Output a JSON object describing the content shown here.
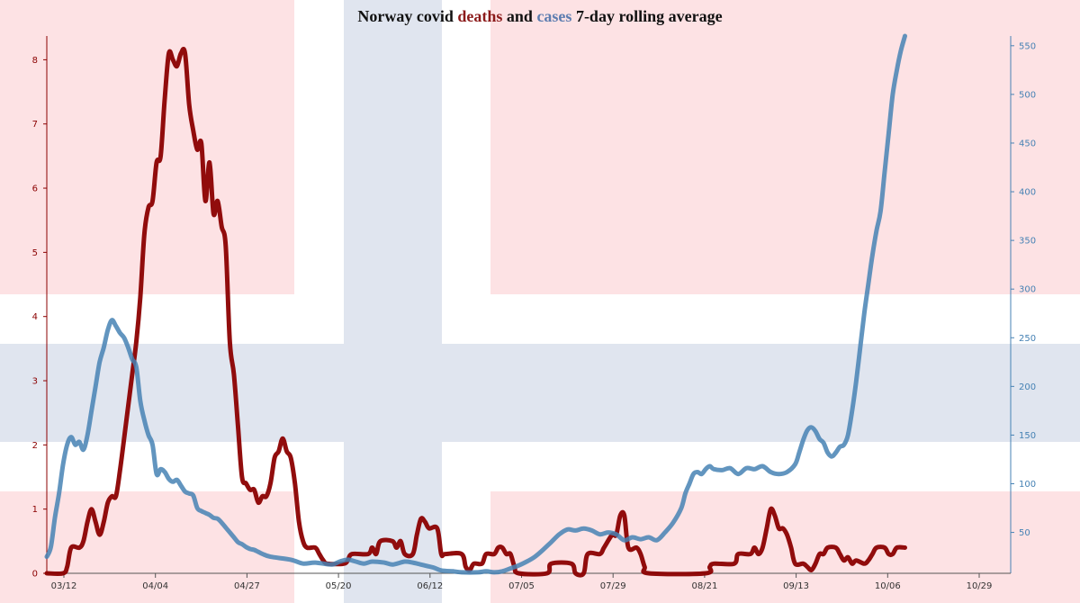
{
  "chart_data": {
    "type": "line",
    "title": {
      "part1": "Norway covid ",
      "part2": "deaths",
      "part3": " and ",
      "part4": "cases",
      "part5": " 7-day rolling average"
    },
    "x_ticks": [
      "03/12",
      "04/04",
      "04/27",
      "05/20",
      "06/12",
      "07/05",
      "07/29",
      "08/21",
      "09/13",
      "10/06",
      "10/29"
    ],
    "y_left": {
      "ticks": [
        "0",
        "1",
        "2",
        "3",
        "4",
        "5",
        "6",
        "7",
        "8"
      ],
      "ylim": [
        0,
        8.3
      ]
    },
    "y_right": {
      "ticks": [
        "50",
        "100",
        "150",
        "200",
        "250",
        "300",
        "350",
        "400",
        "450",
        "500",
        "550"
      ],
      "ylim": [
        8,
        560
      ]
    },
    "x_range_days": [
      0,
      237
    ],
    "series": [
      {
        "name": "deaths",
        "color": "#8B0000",
        "axis": "left",
        "points": [
          [
            0,
            0
          ],
          [
            4,
            0
          ],
          [
            5,
            0.1
          ],
          [
            6,
            0.4
          ],
          [
            8,
            0.4
          ],
          [
            9,
            0.5
          ],
          [
            10,
            0.8
          ],
          [
            11,
            1.0
          ],
          [
            12,
            0.8
          ],
          [
            13,
            0.6
          ],
          [
            14,
            0.8
          ],
          [
            15,
            1.1
          ],
          [
            16,
            1.2
          ],
          [
            17,
            1.2
          ],
          [
            18,
            1.6
          ],
          [
            19,
            2.1
          ],
          [
            20,
            2.6
          ],
          [
            21,
            3.1
          ],
          [
            22,
            3.6
          ],
          [
            23,
            4.3
          ],
          [
            24,
            5.3
          ],
          [
            25,
            5.7
          ],
          [
            26,
            5.8
          ],
          [
            27,
            6.4
          ],
          [
            28,
            6.5
          ],
          [
            29,
            7.4
          ],
          [
            30,
            8.1
          ],
          [
            31,
            8.0
          ],
          [
            32,
            7.9
          ],
          [
            33,
            8.1
          ],
          [
            34,
            8.1
          ],
          [
            35,
            7.3
          ],
          [
            36,
            6.9
          ],
          [
            37,
            6.6
          ],
          [
            38,
            6.7
          ],
          [
            39,
            5.8
          ],
          [
            40,
            6.4
          ],
          [
            41,
            5.6
          ],
          [
            42,
            5.8
          ],
          [
            43,
            5.4
          ],
          [
            44,
            5.1
          ],
          [
            45,
            3.6
          ],
          [
            46,
            3.1
          ],
          [
            47,
            2.3
          ],
          [
            48,
            1.5
          ],
          [
            49,
            1.4
          ],
          [
            50,
            1.3
          ],
          [
            51,
            1.3
          ],
          [
            52,
            1.1
          ],
          [
            53,
            1.2
          ],
          [
            54,
            1.2
          ],
          [
            55,
            1.4
          ],
          [
            56,
            1.8
          ],
          [
            57,
            1.9
          ],
          [
            58,
            2.1
          ],
          [
            59,
            1.9
          ],
          [
            60,
            1.8
          ],
          [
            61,
            1.4
          ],
          [
            62,
            0.8
          ],
          [
            63,
            0.5
          ],
          [
            64,
            0.4
          ],
          [
            66,
            0.4
          ],
          [
            67,
            0.3
          ],
          [
            68,
            0.2
          ],
          [
            69,
            0.15
          ],
          [
            73,
            0.15
          ],
          [
            74,
            0.2
          ],
          [
            75,
            0.3
          ],
          [
            79,
            0.3
          ],
          [
            80,
            0.4
          ],
          [
            81,
            0.3
          ],
          [
            82,
            0.5
          ],
          [
            85,
            0.5
          ],
          [
            86,
            0.4
          ],
          [
            87,
            0.5
          ],
          [
            88,
            0.3
          ],
          [
            90,
            0.3
          ],
          [
            91,
            0.6
          ],
          [
            92,
            0.85
          ],
          [
            93,
            0.8
          ],
          [
            94,
            0.7
          ],
          [
            96,
            0.7
          ],
          [
            97,
            0.3
          ],
          [
            98,
            0.3
          ],
          [
            102,
            0.3
          ],
          [
            103,
            0.1
          ],
          [
            104,
            0.05
          ],
          [
            105,
            0.15
          ],
          [
            107,
            0.15
          ],
          [
            108,
            0.3
          ],
          [
            110,
            0.3
          ],
          [
            111,
            0.4
          ],
          [
            112,
            0.4
          ],
          [
            113,
            0.3
          ],
          [
            114,
            0.3
          ],
          [
            115,
            0.1
          ],
          [
            116,
            0
          ],
          [
            123,
            0
          ],
          [
            124,
            0.15
          ],
          [
            129,
            0.15
          ],
          [
            130,
            0
          ],
          [
            132,
            0
          ],
          [
            133,
            0.3
          ],
          [
            136,
            0.3
          ],
          [
            137,
            0.4
          ],
          [
            139,
            0.6
          ],
          [
            140,
            0.6
          ],
          [
            141,
            0.9
          ],
          [
            142,
            0.9
          ],
          [
            143,
            0.4
          ],
          [
            145,
            0.4
          ],
          [
            146,
            0.3
          ],
          [
            147,
            0.1
          ],
          [
            148,
            0
          ],
          [
            162,
            0
          ],
          [
            163,
            0.1
          ],
          [
            164,
            0.15
          ],
          [
            169,
            0.15
          ],
          [
            170,
            0.3
          ],
          [
            173,
            0.3
          ],
          [
            174,
            0.4
          ],
          [
            175,
            0.3
          ],
          [
            176,
            0.4
          ],
          [
            177,
            0.7
          ],
          [
            178,
            1.0
          ],
          [
            179,
            0.9
          ],
          [
            180,
            0.7
          ],
          [
            181,
            0.7
          ],
          [
            182,
            0.6
          ],
          [
            183,
            0.4
          ],
          [
            184,
            0.15
          ],
          [
            186,
            0.15
          ],
          [
            187,
            0.1
          ],
          [
            188,
            0.05
          ],
          [
            189,
            0.15
          ],
          [
            190,
            0.3
          ],
          [
            191,
            0.3
          ],
          [
            192,
            0.4
          ],
          [
            194,
            0.4
          ],
          [
            195,
            0.3
          ],
          [
            196,
            0.2
          ],
          [
            197,
            0.25
          ],
          [
            198,
            0.15
          ],
          [
            199,
            0.2
          ],
          [
            201,
            0.15
          ],
          [
            202,
            0.2
          ],
          [
            203,
            0.3
          ],
          [
            204,
            0.4
          ],
          [
            206,
            0.4
          ],
          [
            207,
            0.3
          ],
          [
            208,
            0.3
          ],
          [
            209,
            0.4
          ],
          [
            211,
            0.4
          ]
        ]
      },
      {
        "name": "cases",
        "color": "#4682B4",
        "axis": "right",
        "points": [
          [
            0,
            25
          ],
          [
            1,
            35
          ],
          [
            2,
            65
          ],
          [
            3,
            90
          ],
          [
            4,
            120
          ],
          [
            5,
            140
          ],
          [
            6,
            148
          ],
          [
            7,
            140
          ],
          [
            8,
            143
          ],
          [
            9,
            135
          ],
          [
            10,
            150
          ],
          [
            11,
            175
          ],
          [
            12,
            200
          ],
          [
            13,
            225
          ],
          [
            14,
            240
          ],
          [
            15,
            258
          ],
          [
            16,
            268
          ],
          [
            17,
            262
          ],
          [
            18,
            255
          ],
          [
            19,
            250
          ],
          [
            20,
            240
          ],
          [
            21,
            228
          ],
          [
            22,
            220
          ],
          [
            23,
            185
          ],
          [
            24,
            165
          ],
          [
            25,
            150
          ],
          [
            26,
            140
          ],
          [
            27,
            110
          ],
          [
            28,
            115
          ],
          [
            29,
            112
          ],
          [
            30,
            105
          ],
          [
            31,
            102
          ],
          [
            32,
            104
          ],
          [
            33,
            98
          ],
          [
            34,
            92
          ],
          [
            35,
            90
          ],
          [
            36,
            88
          ],
          [
            37,
            75
          ],
          [
            38,
            72
          ],
          [
            39,
            70
          ],
          [
            40,
            68
          ],
          [
            41,
            65
          ],
          [
            42,
            64
          ],
          [
            43,
            60
          ],
          [
            44,
            55
          ],
          [
            45,
            50
          ],
          [
            46,
            45
          ],
          [
            47,
            40
          ],
          [
            48,
            38
          ],
          [
            49,
            35
          ],
          [
            50,
            33
          ],
          [
            51,
            32
          ],
          [
            52,
            30
          ],
          [
            53,
            28
          ],
          [
            55,
            25
          ],
          [
            60,
            22
          ],
          [
            63,
            18
          ],
          [
            66,
            19
          ],
          [
            70,
            17
          ],
          [
            72,
            20
          ],
          [
            74,
            22
          ],
          [
            76,
            20
          ],
          [
            78,
            18
          ],
          [
            80,
            20
          ],
          [
            83,
            19
          ],
          [
            85,
            17
          ],
          [
            88,
            20
          ],
          [
            90,
            19
          ],
          [
            92,
            17
          ],
          [
            95,
            14
          ],
          [
            97,
            11
          ],
          [
            100,
            10
          ],
          [
            102,
            9
          ],
          [
            106,
            9
          ],
          [
            108,
            10
          ],
          [
            110,
            9
          ],
          [
            112,
            10
          ],
          [
            114,
            13
          ],
          [
            116,
            16
          ],
          [
            118,
            20
          ],
          [
            120,
            25
          ],
          [
            122,
            32
          ],
          [
            124,
            40
          ],
          [
            126,
            48
          ],
          [
            128,
            53
          ],
          [
            130,
            52
          ],
          [
            132,
            54
          ],
          [
            134,
            52
          ],
          [
            136,
            48
          ],
          [
            138,
            50
          ],
          [
            140,
            48
          ],
          [
            142,
            42
          ],
          [
            144,
            45
          ],
          [
            146,
            43
          ],
          [
            148,
            45
          ],
          [
            150,
            42
          ],
          [
            152,
            50
          ],
          [
            154,
            60
          ],
          [
            156,
            75
          ],
          [
            157,
            90
          ],
          [
            158,
            100
          ],
          [
            159,
            110
          ],
          [
            160,
            112
          ],
          [
            161,
            110
          ],
          [
            162,
            115
          ],
          [
            163,
            118
          ],
          [
            164,
            115
          ],
          [
            166,
            114
          ],
          [
            168,
            116
          ],
          [
            170,
            110
          ],
          [
            172,
            116
          ],
          [
            174,
            115
          ],
          [
            176,
            118
          ],
          [
            178,
            112
          ],
          [
            180,
            110
          ],
          [
            182,
            112
          ],
          [
            184,
            120
          ],
          [
            185,
            132
          ],
          [
            186,
            145
          ],
          [
            187,
            155
          ],
          [
            188,
            158
          ],
          [
            189,
            154
          ],
          [
            190,
            146
          ],
          [
            191,
            142
          ],
          [
            192,
            132
          ],
          [
            193,
            128
          ],
          [
            194,
            132
          ],
          [
            195,
            138
          ],
          [
            196,
            140
          ],
          [
            197,
            150
          ],
          [
            198,
            175
          ],
          [
            199,
            205
          ],
          [
            200,
            240
          ],
          [
            201,
            275
          ],
          [
            202,
            305
          ],
          [
            203,
            335
          ],
          [
            204,
            360
          ],
          [
            205,
            380
          ],
          [
            206,
            420
          ],
          [
            207,
            460
          ],
          [
            208,
            500
          ],
          [
            209,
            525
          ],
          [
            210,
            545
          ],
          [
            211,
            560
          ]
        ]
      }
    ],
    "background": {
      "red": "#FDE2E4",
      "blue": "#E0E5EF",
      "white": "#FFFFFF"
    },
    "axis_colors": {
      "left": "#8B0000",
      "right": "#4682B4",
      "bottom": "#555555"
    }
  }
}
